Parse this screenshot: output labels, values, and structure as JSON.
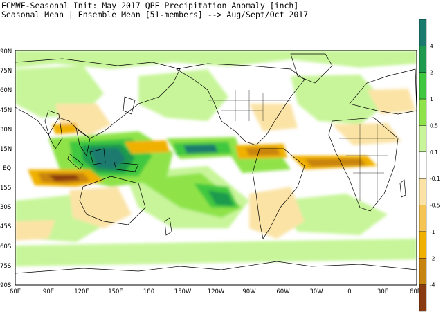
{
  "header": {
    "line1": "ECMWF-Seasonal Init: May 2017 QPF Precipitation Anomaly [inch]",
    "line2": "Seasonal Mean | Ensemble Mean [51-members] --> Aug/Sept/Oct 2017"
  },
  "map": {
    "lat_labels": [
      "90N",
      "75N",
      "60N",
      "45N",
      "30N",
      "15N",
      "EQ",
      "15S",
      "30S",
      "45S",
      "60S",
      "75S",
      "90S"
    ],
    "lon_labels": [
      "60E",
      "90E",
      "120E",
      "150E",
      "180",
      "150W",
      "120W",
      "90W",
      "60W",
      "30W",
      "0",
      "30E",
      "60E"
    ]
  },
  "colorbar": {
    "labels": [
      "4",
      "2",
      "1",
      "0.5",
      "0.1",
      "-0.1",
      "-0.5",
      "-1",
      "-2",
      "-4"
    ],
    "colors": [
      "#1a7a6e",
      "#1e9a4e",
      "#3fc83f",
      "#8fe34a",
      "#c8f59a",
      "#ffffff",
      "#fbe3a6",
      "#f6c453",
      "#f0b000",
      "#c88410",
      "#8a3a10"
    ]
  }
}
